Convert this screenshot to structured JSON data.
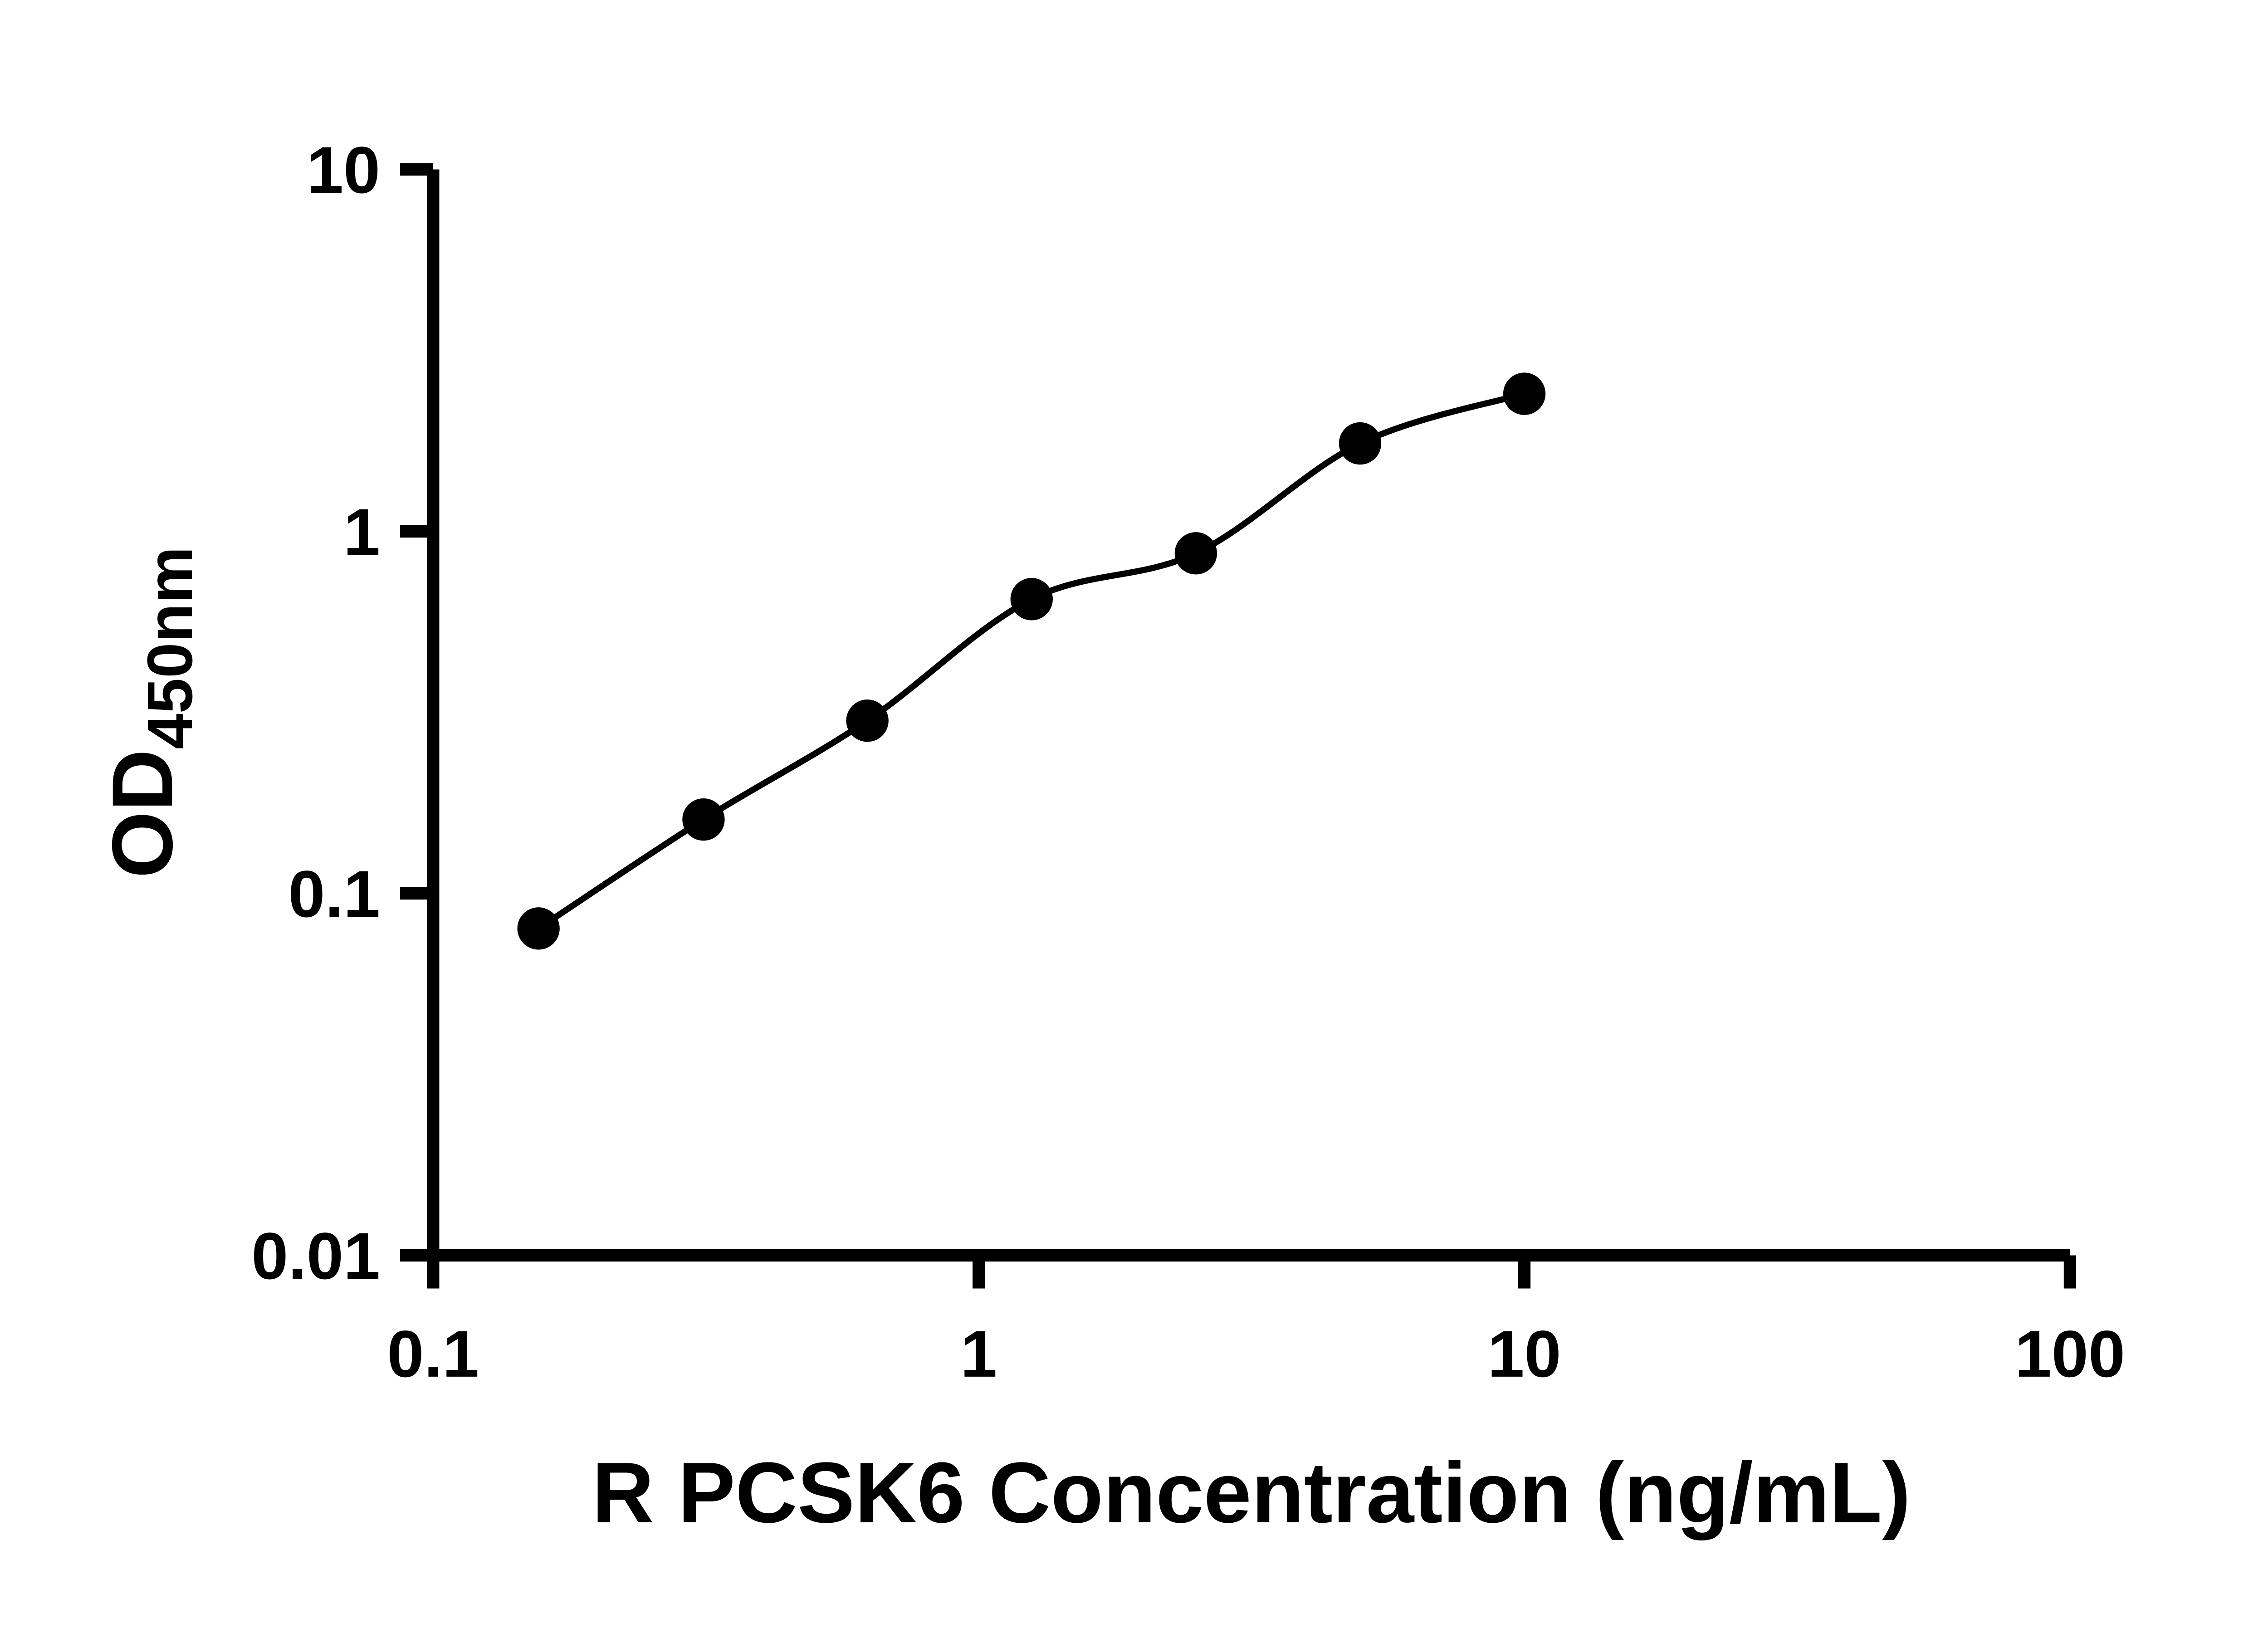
{
  "chart_data": {
    "type": "scatter",
    "xlabel": "R PCSK6 Concentration (ng/mL)",
    "ylabel": "OD450nm",
    "ylabel_main": "OD",
    "ylabel_sub": "450nm",
    "x_scale": "log",
    "y_scale": "log",
    "xlim": [
      0.1,
      100
    ],
    "ylim": [
      0.01,
      10
    ],
    "x_ticks": [
      0.1,
      1,
      10,
      100
    ],
    "x_tick_labels": [
      "0.1",
      "1",
      "10",
      "100"
    ],
    "y_ticks": [
      0.01,
      0.1,
      1,
      10
    ],
    "y_tick_labels": [
      "0.01",
      "0.1",
      "1",
      "10"
    ],
    "grid": false,
    "legend": false,
    "series": [
      {
        "marker": "circle",
        "fit_line": true,
        "x": [
          0.156,
          0.313,
          0.625,
          1.25,
          2.5,
          5,
          10
        ],
        "y": [
          0.08,
          0.16,
          0.3,
          0.65,
          0.87,
          1.75,
          2.4
        ]
      }
    ],
    "colors": {
      "marker": "#000000",
      "line": "#000000",
      "axis": "#000000",
      "background": "#ffffff"
    }
  }
}
